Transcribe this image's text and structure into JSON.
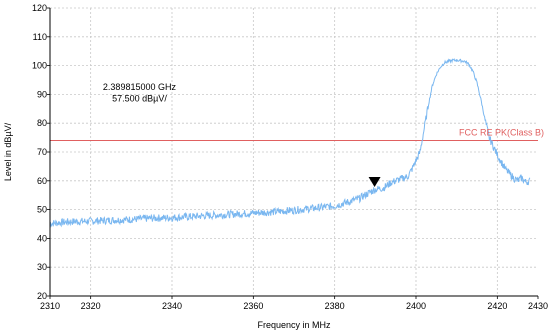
{
  "chart_data": {
    "type": "line",
    "xlabel": "Frequency in MHz",
    "ylabel": "Level in dBµV/",
    "xlim": [
      2310,
      2430
    ],
    "ylim": [
      20,
      120
    ],
    "x_ticks": [
      2310,
      2320,
      2340,
      2360,
      2380,
      2400,
      2420,
      2430
    ],
    "x_grid": [
      2320,
      2340,
      2360,
      2380,
      2400,
      2420
    ],
    "y_ticks": [
      20,
      30,
      40,
      50,
      60,
      70,
      80,
      90,
      100,
      110,
      120
    ],
    "grid": true,
    "colors": {
      "trace": "#7ab7f0",
      "limit": "#e06060",
      "grid": "#c8c8c8",
      "axis": "#000000"
    },
    "series": [
      {
        "x": [
          2310,
          2315,
          2320,
          2325,
          2330,
          2335,
          2340,
          2345,
          2350,
          2355,
          2360,
          2365,
          2370,
          2375,
          2380,
          2383,
          2386,
          2388,
          2390,
          2392,
          2394,
          2396,
          2398,
          2399,
          2400,
          2401,
          2402,
          2403,
          2404,
          2405,
          2406,
          2407,
          2408,
          2409,
          2410,
          2411,
          2412,
          2413,
          2414,
          2415,
          2416,
          2417,
          2418,
          2419,
          2420,
          2421,
          2422,
          2423,
          2424,
          2425,
          2426,
          2427,
          2428
        ],
        "y": [
          45.2,
          45.8,
          46.0,
          46.3,
          46.6,
          47.0,
          47.2,
          47.6,
          48.0,
          48.4,
          48.8,
          49.2,
          49.8,
          50.5,
          51.3,
          52.5,
          53.8,
          55.5,
          57.0,
          57.5,
          59.5,
          60.5,
          61.5,
          64.0,
          67.0,
          70.0,
          78.0,
          86.0,
          93.0,
          97.0,
          99.5,
          101.0,
          101.5,
          101.8,
          101.9,
          101.7,
          101.5,
          100.5,
          98.0,
          94.0,
          88.0,
          81.0,
          75.0,
          72.0,
          69.0,
          66.5,
          64.0,
          62.5,
          61.0,
          60.0,
          61.0,
          59.5,
          60.0
        ]
      }
    ],
    "limit_line": {
      "label": "FCC RE PK(Class B)",
      "value": 74
    },
    "marker": {
      "x": 2389.815,
      "y": 57.5,
      "freq_text": "2.389815000 GHz",
      "level_text": "57.500 dBµV/"
    }
  }
}
